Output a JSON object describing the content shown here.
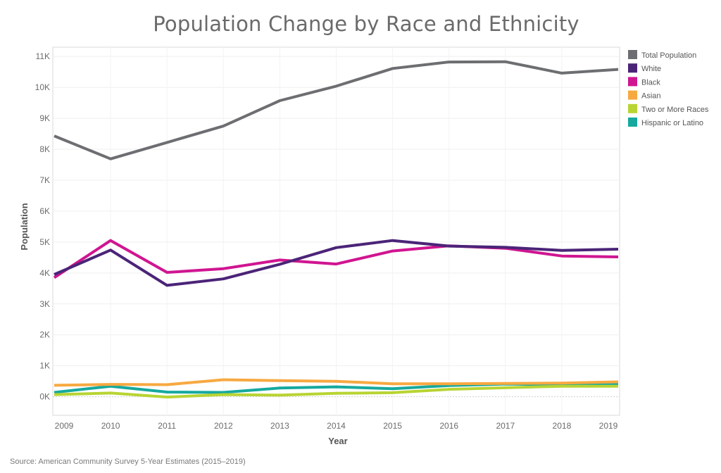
{
  "chart_data": {
    "type": "line",
    "title": "Population Change by Race and Ethnicity",
    "xlabel": "Year",
    "ylabel": "Population",
    "x": [
      "2009",
      "2010",
      "2011",
      "2012",
      "2013",
      "2014",
      "2015",
      "2016",
      "2017",
      "2018",
      "2019"
    ],
    "ylim": [
      -600,
      11300
    ],
    "yticks": [
      0,
      1000,
      2000,
      3000,
      4000,
      5000,
      6000,
      7000,
      8000,
      9000,
      10000,
      11000
    ],
    "ytick_labels": [
      "0K",
      "1K",
      "2K",
      "3K",
      "4K",
      "5K",
      "6K",
      "7K",
      "8K",
      "9K",
      "10K",
      "11K"
    ],
    "grid": true,
    "legend_position": "right",
    "series": [
      {
        "name": "Total Population",
        "color": "#6d6e71",
        "values": [
          8430,
          7690,
          8220,
          8750,
          9570,
          10040,
          10610,
          10820,
          10830,
          10460,
          10580
        ]
      },
      {
        "name": "White",
        "color": "#4b2478",
        "values": [
          3950,
          4740,
          3600,
          3810,
          4280,
          4820,
          5050,
          4870,
          4830,
          4730,
          4770
        ]
      },
      {
        "name": "Black",
        "color": "#d01591",
        "values": [
          3850,
          5050,
          4020,
          4140,
          4420,
          4290,
          4710,
          4880,
          4800,
          4550,
          4520
        ]
      },
      {
        "name": "Asian",
        "color": "#f7a941",
        "values": [
          370,
          400,
          390,
          550,
          520,
          500,
          420,
          420,
          430,
          440,
          480
        ]
      },
      {
        "name": "Two or More Races",
        "color": "#b8d433",
        "values": [
          70,
          120,
          -10,
          70,
          50,
          110,
          130,
          240,
          290,
          340,
          340
        ]
      },
      {
        "name": "Hispanic or Latino",
        "color": "#16a99e",
        "values": [
          140,
          340,
          150,
          140,
          280,
          320,
          260,
          360,
          410,
          390,
          390
        ]
      }
    ]
  },
  "source": "Source: American Community Survey 5-Year Estimates (2015–2019)"
}
